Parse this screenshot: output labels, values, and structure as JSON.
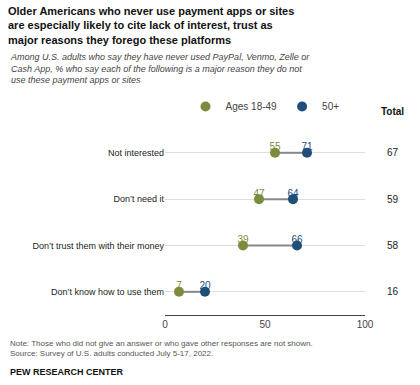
{
  "chart_data": {
    "type": "dot",
    "title": "Older Americans who never use payment apps or sites\nare especially likely to cite lack of interest, trust as\nmajor reasons they forego these platforms",
    "subtitle": "Among U.S. adults who say they have never used PayPal, Venmo, Zelle or\nCash App, % who say each of the following is a major reason they do not\nuse these payment apps or sites",
    "categories": [
      "Not interested",
      "Don’t need it",
      "Don’t trust them with their money",
      "Don’t know how to use them"
    ],
    "series": [
      {
        "name": "Ages 18-49",
        "color": "#7b8c3e",
        "values": [
          55,
          47,
          39,
          7
        ]
      },
      {
        "name": "50+",
        "color": "#1f4e79",
        "values": [
          71,
          64,
          66,
          20
        ]
      }
    ],
    "totals": {
      "name": "Total",
      "values": [
        67,
        59,
        58,
        16
      ]
    },
    "xlim": [
      0,
      100
    ],
    "xticks": [
      0,
      50,
      100
    ],
    "data_labels": true,
    "grid": true,
    "legend": "top",
    "note": "Note: Those who did not give an answer or who gave other responses are not shown.\nSource: Survey of U.S. adults conducted July 5-17, 2022.",
    "footer": "PEW RESEARCH CENTER"
  }
}
